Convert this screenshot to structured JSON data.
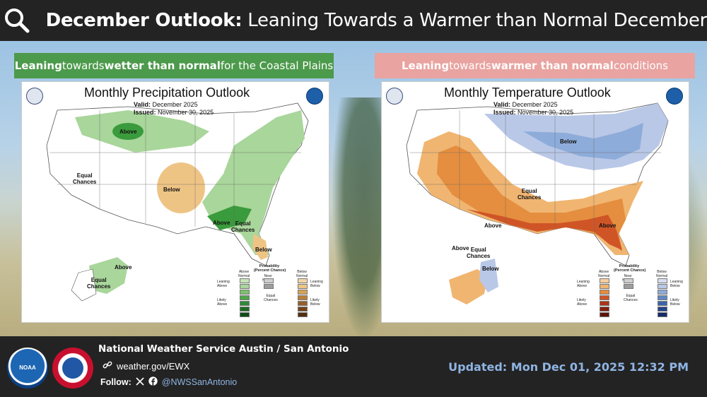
{
  "header": {
    "title_bold": "December Outlook:",
    "title_rest": " Leaning Towards a Warmer than Normal December"
  },
  "banners": {
    "precip": {
      "lead": "Leaning",
      "mid": " towards ",
      "bold": "wetter than normal",
      "tail": " for the Coastal Plains",
      "bg": "#4c9a4b"
    },
    "temp": {
      "lead": "Leaning",
      "mid": " towards ",
      "bold": "warmer than normal",
      "tail": " conditions",
      "bg": "#e9a3a0"
    }
  },
  "precip_map": {
    "title": "Monthly Precipitation Outlook",
    "valid_label": "Valid:",
    "valid_value": "December 2025",
    "issued_label": "Issued:",
    "issued_value": "November 30, 2025",
    "labels": {
      "above1": "Above",
      "equal1": "Equal\nChances",
      "below": "Below",
      "above2": "Above",
      "equal2": "Equal\nChances",
      "below2": "Below",
      "above_ak": "Above",
      "equal_ak": "Equal\nChances"
    },
    "legend": {
      "title": "Probability\n(Percent Chance)",
      "above": "Above\nNormal",
      "near": "Near\nNormal",
      "below": "Below\nNormal",
      "equal": "Equal\nChances",
      "leaning_above": "Leaning\nAbove",
      "likely_above": "Likely\nAbove",
      "leaning_below": "Leaning\nBelow",
      "likely_below": "Likely\nBelow"
    }
  },
  "temp_map": {
    "title": "Monthly Temperature Outlook",
    "valid_label": "Valid:",
    "valid_value": "December 2025",
    "issued_label": "Issued:",
    "issued_value": "November 30, 2025",
    "labels": {
      "below1": "Below",
      "equal1": "Equal\nChances",
      "above1": "Above",
      "above2": "Above",
      "above_ak": "Above",
      "equal_ak": "Equal\nChances",
      "below_ak": "Below"
    },
    "legend": {
      "title": "Probability\n(Percent Chance)",
      "above": "Above\nNormal",
      "near": "Near\nNormal",
      "below": "Below\nNormal",
      "equal": "Equal\nChances",
      "leaning_above": "Leaning\nAbove",
      "likely_above": "Likely\nAbove",
      "leaning_below": "Leaning\nBelow",
      "likely_below": "Likely\nBelow"
    }
  },
  "footer": {
    "office": "National Weather Service Austin / San Antonio",
    "website": "weather.gov/EWX",
    "follow_label": "Follow:",
    "handle": "@NWSSanAntonio",
    "updated": "Updated: Mon Dec 01, 2025 12:32 PM",
    "noaa_text": "NOAA"
  }
}
